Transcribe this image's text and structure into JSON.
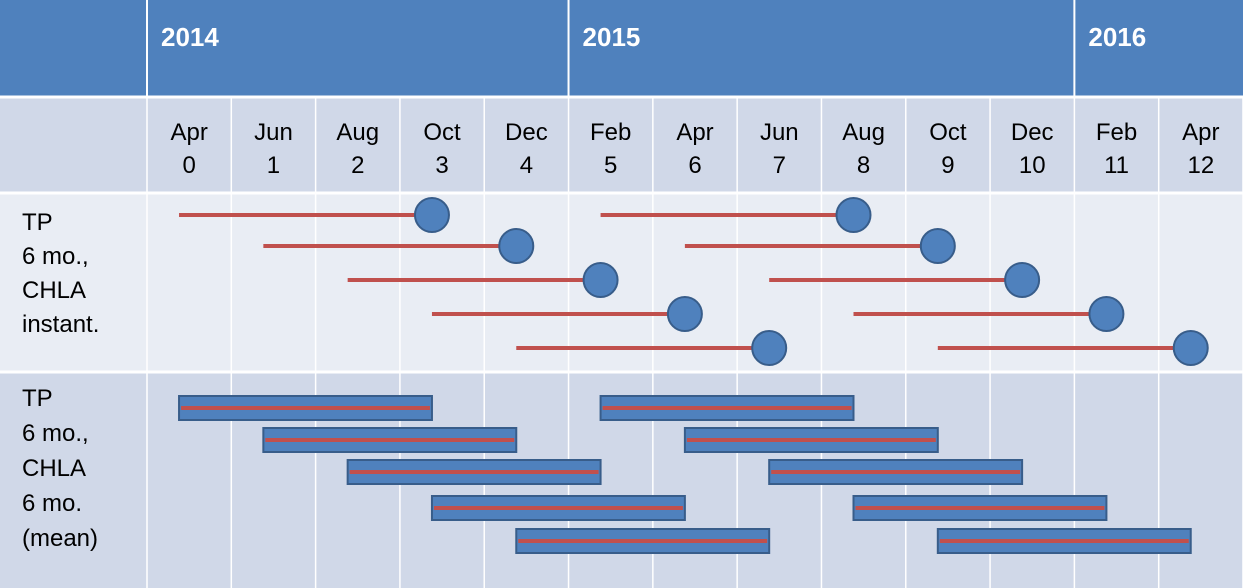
{
  "header": {
    "years": [
      "2014",
      "2015",
      "2016"
    ],
    "months": [
      [
        "Apr",
        "0"
      ],
      [
        "Jun",
        "1"
      ],
      [
        "Aug",
        "2"
      ],
      [
        "Oct",
        "3"
      ],
      [
        "Dec",
        "4"
      ],
      [
        "Feb",
        "5"
      ],
      [
        "Apr",
        "6"
      ],
      [
        "Jun",
        "7"
      ],
      [
        "Aug",
        "8"
      ],
      [
        "Oct",
        "9"
      ],
      [
        "Dec",
        "10"
      ],
      [
        "Feb",
        "11"
      ],
      [
        "Apr",
        "12"
      ]
    ]
  },
  "rows": [
    {
      "label": [
        "TP",
        "6 mo.,",
        "CHLA",
        "instant."
      ],
      "segments": [
        {
          "start": 0,
          "end": 3
        },
        {
          "start": 1,
          "end": 4
        },
        {
          "start": 2,
          "end": 5
        },
        {
          "start": 3,
          "end": 6
        },
        {
          "start": 4,
          "end": 7
        },
        {
          "start": 5,
          "end": 8
        },
        {
          "start": 6,
          "end": 9
        },
        {
          "start": 7,
          "end": 10
        },
        {
          "start": 8,
          "end": 11
        },
        {
          "start": 9,
          "end": 12
        }
      ]
    },
    {
      "label": [
        "TP",
        "6 mo.,",
        "CHLA",
        "6 mo.",
        "(mean)"
      ],
      "segments": [
        {
          "start": 0,
          "end": 3
        },
        {
          "start": 1,
          "end": 4
        },
        {
          "start": 2,
          "end": 5
        },
        {
          "start": 3,
          "end": 6
        },
        {
          "start": 4,
          "end": 7
        },
        {
          "start": 5,
          "end": 8
        },
        {
          "start": 6,
          "end": 9
        },
        {
          "start": 7,
          "end": 10
        },
        {
          "start": 8,
          "end": 11
        },
        {
          "start": 9,
          "end": 12
        }
      ]
    }
  ]
}
